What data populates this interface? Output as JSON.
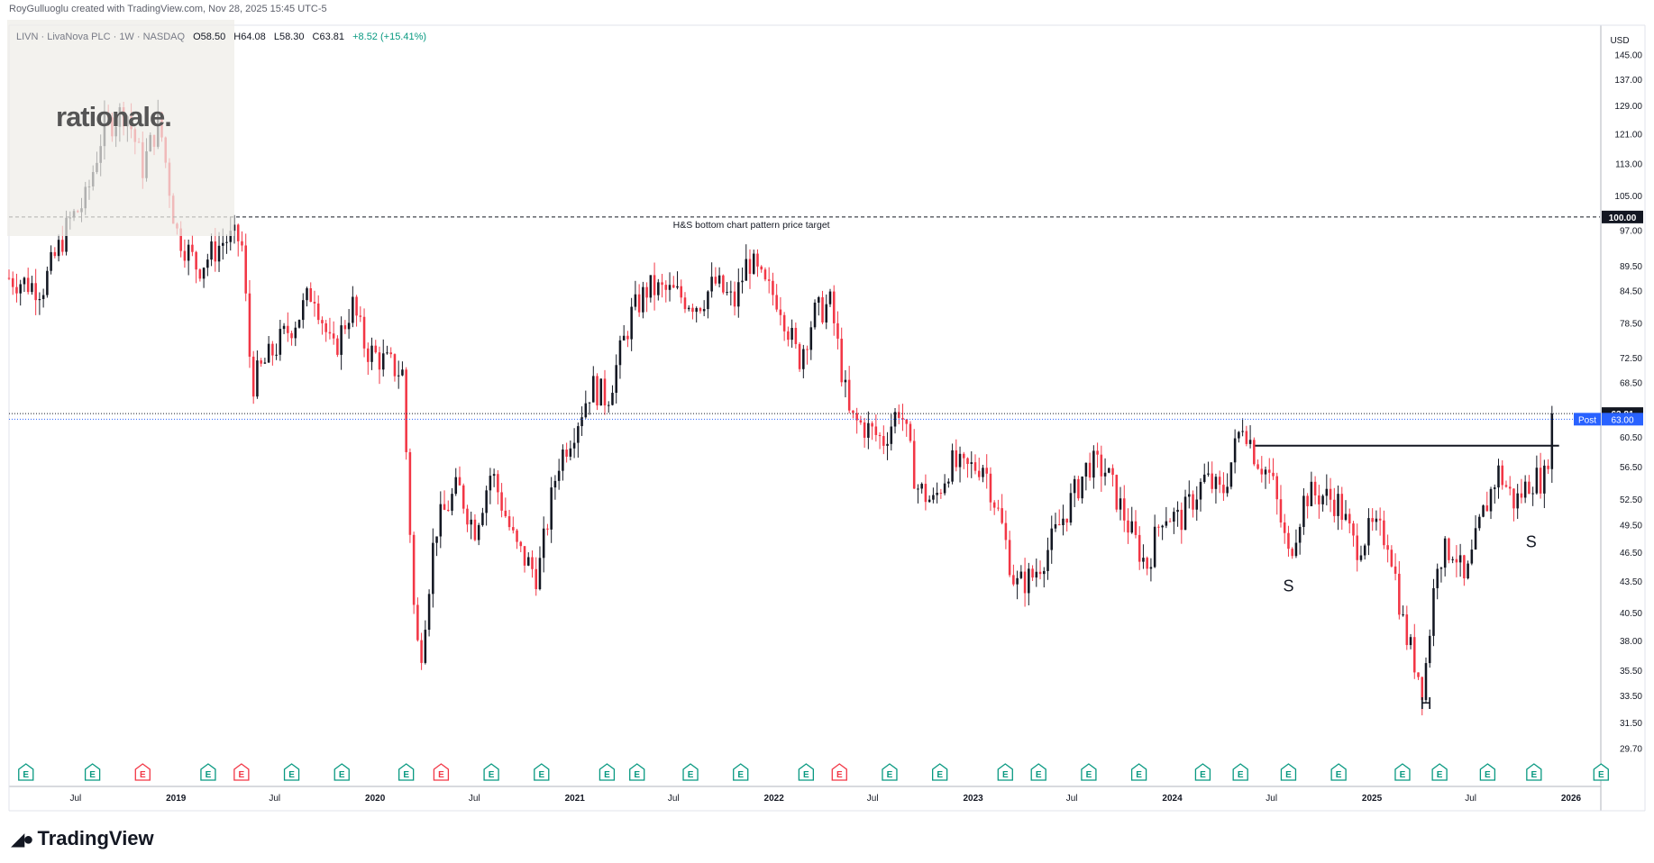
{
  "header": {
    "credit": "RoyGulluoglu created with TradingView.com, Nov 28, 2025 15:45 UTC-5"
  },
  "legend": {
    "symbol": "LIVN · LivaNova PLC · 1W · NASDAQ",
    "open": "O58.50",
    "high": "H64.08",
    "low": "L58.30",
    "close": "C63.81",
    "change": "+8.52 (+15.41%)"
  },
  "logo": {
    "text": "rationale."
  },
  "footer": {
    "brand": "TradingView"
  },
  "colors": {
    "up": "#131722",
    "down": "#f23645",
    "earnings_up": "#089981",
    "earnings_down": "#f23645",
    "post": "#2962ff",
    "grid_line": "#e0e3eb"
  },
  "chart_data": {
    "type": "candlestick",
    "title": "",
    "xlabel": "",
    "ylabel": "",
    "currency": "USD",
    "ylim": [
      27.5,
      155
    ],
    "y_scale": "log",
    "y_tick_labels": [
      "145.00",
      "137.00",
      "129.00",
      "121.00",
      "113.00",
      "105.00",
      "97.00",
      "89.50",
      "84.50",
      "78.50",
      "72.50",
      "68.50",
      "60.50",
      "56.50",
      "52.50",
      "49.50",
      "46.50",
      "43.50",
      "40.50",
      "38.00",
      "35.50",
      "33.50",
      "31.50",
      "29.70"
    ],
    "x_tick_labels": [
      "Jul",
      "2019",
      "Jul",
      "2020",
      "Jul",
      "2021",
      "Jul",
      "2022",
      "Jul",
      "2023",
      "Jul",
      "2024",
      "Jul",
      "2025",
      "Jul",
      "2026"
    ],
    "x_tick_dates": [
      "2018-07-01",
      "2019-01-01",
      "2019-07-01",
      "2020-01-01",
      "2020-07-01",
      "2021-01-01",
      "2021-07-01",
      "2022-01-01",
      "2022-07-01",
      "2023-01-01",
      "2023-07-01",
      "2024-01-01",
      "2024-07-01",
      "2025-01-01",
      "2025-07-01",
      "2026-01-01"
    ],
    "price_anchors": [
      [
        "2018-03-01",
        87
      ],
      [
        "2018-05-01",
        85
      ],
      [
        "2018-06-20",
        99
      ],
      [
        "2018-07-20",
        104
      ],
      [
        "2018-08-20",
        122
      ],
      [
        "2018-10-01",
        128
      ],
      [
        "2018-11-01",
        112
      ],
      [
        "2018-12-01",
        125
      ],
      [
        "2019-01-01",
        97
      ],
      [
        "2019-02-10",
        89
      ],
      [
        "2019-04-01",
        95
      ],
      [
        "2019-05-01",
        95
      ],
      [
        "2019-05-20",
        68
      ],
      [
        "2019-06-01",
        70
      ],
      [
        "2019-07-01",
        74
      ],
      [
        "2019-08-15",
        80
      ],
      [
        "2019-09-10",
        85
      ],
      [
        "2019-10-15",
        73
      ],
      [
        "2019-11-20",
        82
      ],
      [
        "2019-12-15",
        74
      ],
      [
        "2020-01-15",
        72
      ],
      [
        "2020-02-20",
        70
      ],
      [
        "2020-03-15",
        38
      ],
      [
        "2020-03-25",
        37
      ],
      [
        "2020-04-20",
        49
      ],
      [
        "2020-06-01",
        54
      ],
      [
        "2020-07-01",
        49
      ],
      [
        "2020-08-01",
        56
      ],
      [
        "2020-09-15",
        47
      ],
      [
        "2020-10-25",
        44
      ],
      [
        "2020-12-01",
        57
      ],
      [
        "2021-01-01",
        62
      ],
      [
        "2021-02-01",
        68
      ],
      [
        "2021-03-01",
        66
      ],
      [
        "2021-04-15",
        80
      ],
      [
        "2021-05-15",
        85
      ],
      [
        "2021-07-01",
        84
      ],
      [
        "2021-08-15",
        82
      ],
      [
        "2021-09-15",
        86
      ],
      [
        "2021-10-20",
        82
      ],
      [
        "2021-11-15",
        91
      ],
      [
        "2021-12-15",
        85
      ],
      [
        "2022-01-10",
        83
      ],
      [
        "2022-02-15",
        72
      ],
      [
        "2022-03-15",
        80
      ],
      [
        "2022-04-15",
        82
      ],
      [
        "2022-05-20",
        63
      ],
      [
        "2022-06-15",
        62
      ],
      [
        "2022-07-20",
        60
      ],
      [
        "2022-08-20",
        65
      ],
      [
        "2022-09-20",
        54
      ],
      [
        "2022-10-20",
        52
      ],
      [
        "2022-11-20",
        57
      ],
      [
        "2022-12-15",
        56
      ],
      [
        "2023-01-20",
        57
      ],
      [
        "2023-02-20",
        50
      ],
      [
        "2023-03-20",
        43
      ],
      [
        "2023-04-20",
        44
      ],
      [
        "2023-05-20",
        47
      ],
      [
        "2023-06-20",
        51
      ],
      [
        "2023-08-01",
        57
      ],
      [
        "2023-09-01",
        56
      ],
      [
        "2023-10-15",
        49
      ],
      [
        "2023-11-15",
        45
      ],
      [
        "2023-12-15",
        51
      ],
      [
        "2024-01-15",
        50
      ],
      [
        "2024-03-01",
        55
      ],
      [
        "2024-04-01",
        53
      ],
      [
        "2024-05-10",
        63
      ],
      [
        "2024-06-01",
        58
      ],
      [
        "2024-07-01",
        55
      ],
      [
        "2024-08-01",
        46
      ],
      [
        "2024-09-01",
        53
      ],
      [
        "2024-10-01",
        53
      ],
      [
        "2024-11-01",
        52
      ],
      [
        "2024-12-01",
        47
      ],
      [
        "2025-01-01",
        49
      ],
      [
        "2025-02-01",
        48
      ],
      [
        "2025-03-01",
        39
      ],
      [
        "2025-04-05",
        34
      ],
      [
        "2025-05-01",
        46
      ],
      [
        "2025-06-01",
        47
      ],
      [
        "2025-06-20",
        43
      ],
      [
        "2025-07-20",
        50
      ],
      [
        "2025-08-20",
        56
      ],
      [
        "2025-09-20",
        52
      ],
      [
        "2025-10-20",
        55
      ],
      [
        "2025-11-15",
        55
      ],
      [
        "2025-11-28",
        63.81
      ]
    ],
    "current_price": 63.81,
    "post_market": 63.0,
    "target_line": {
      "price": 100.0,
      "label": "H&S bottom chart pattern price target"
    },
    "neckline": {
      "price": 59.3,
      "start": "2024-06-01",
      "end": "2025-12-10"
    },
    "pattern_labels": [
      {
        "text": "S",
        "date": "2024-08-01",
        "price": 42.5
      },
      {
        "text": "H",
        "date": "2025-04-10",
        "price": 32.5
      },
      {
        "text": "S",
        "date": "2025-10-20",
        "price": 47.0
      }
    ],
    "post_label": "Post",
    "target_price_label": "100.00",
    "current_price_label": "63.81",
    "post_price_label": "63.00",
    "earnings_markers": [
      {
        "date": "2018-04-01",
        "type": "E",
        "positive": true
      },
      {
        "date": "2018-08-01",
        "type": "E",
        "positive": true
      },
      {
        "date": "2018-11-01",
        "type": "E",
        "positive": false
      },
      {
        "date": "2019-03-01",
        "type": "E",
        "positive": true
      },
      {
        "date": "2019-05-01",
        "type": "E",
        "positive": false
      },
      {
        "date": "2019-08-01",
        "type": "E",
        "positive": true
      },
      {
        "date": "2019-11-01",
        "type": "E",
        "positive": true
      },
      {
        "date": "2020-02-27",
        "type": "E",
        "positive": true
      },
      {
        "date": "2020-05-01",
        "type": "E",
        "positive": false
      },
      {
        "date": "2020-08-01",
        "type": "E",
        "positive": true
      },
      {
        "date": "2020-11-01",
        "type": "E",
        "positive": true
      },
      {
        "date": "2021-03-01",
        "type": "E",
        "positive": true
      },
      {
        "date": "2021-04-25",
        "type": "E",
        "positive": true
      },
      {
        "date": "2021-08-01",
        "type": "E",
        "positive": true
      },
      {
        "date": "2021-11-01",
        "type": "E",
        "positive": true
      },
      {
        "date": "2022-03-01",
        "type": "E",
        "positive": true
      },
      {
        "date": "2022-05-01",
        "type": "E",
        "positive": false
      },
      {
        "date": "2022-08-01",
        "type": "E",
        "positive": true
      },
      {
        "date": "2022-11-01",
        "type": "E",
        "positive": true
      },
      {
        "date": "2023-03-01",
        "type": "E",
        "positive": true
      },
      {
        "date": "2023-05-01",
        "type": "E",
        "positive": true
      },
      {
        "date": "2023-08-01",
        "type": "E",
        "positive": true
      },
      {
        "date": "2023-11-01",
        "type": "E",
        "positive": true
      },
      {
        "date": "2024-02-26",
        "type": "E",
        "positive": true
      },
      {
        "date": "2024-05-05",
        "type": "E",
        "positive": true
      },
      {
        "date": "2024-08-01",
        "type": "E",
        "positive": true
      },
      {
        "date": "2024-11-01",
        "type": "E",
        "positive": true
      },
      {
        "date": "2025-02-26",
        "type": "E",
        "positive": true
      },
      {
        "date": "2025-05-05",
        "type": "E",
        "positive": true
      },
      {
        "date": "2025-08-01",
        "type": "E",
        "positive": true
      },
      {
        "date": "2025-10-25",
        "type": "E",
        "positive": true
      },
      {
        "date": "2026-02-25",
        "type": "E",
        "positive": true
      }
    ]
  }
}
